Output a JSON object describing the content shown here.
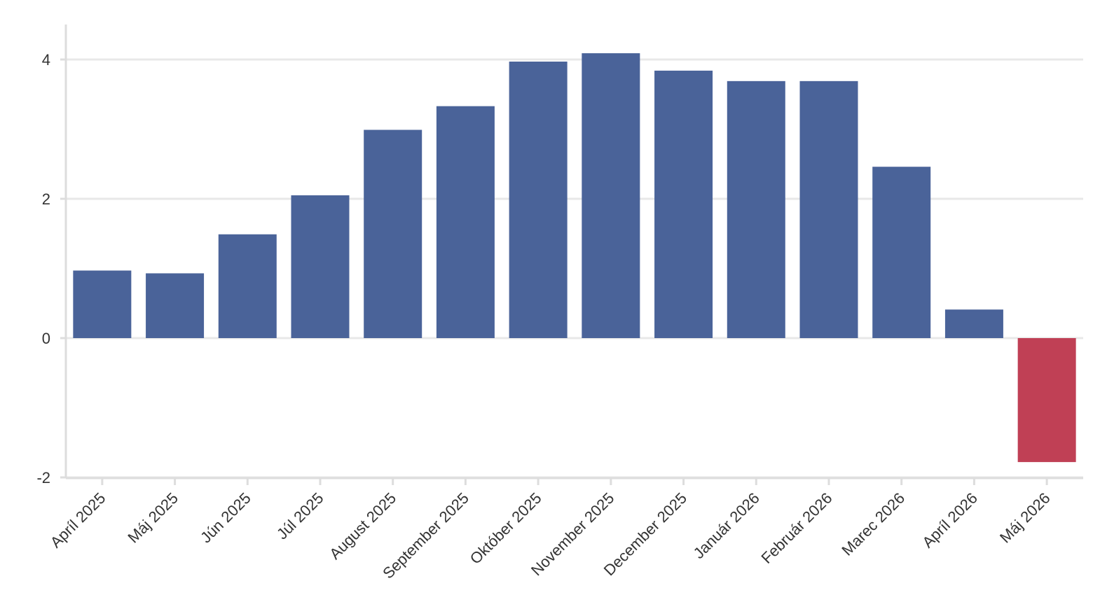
{
  "chart_data": {
    "type": "bar",
    "title": "",
    "xlabel": "",
    "ylabel": "",
    "categories": [
      "Apríl 2025",
      "Máj 2025",
      "Jún 2025",
      "Júl 2025",
      "August 2025",
      "September 2025",
      "Október 2025",
      "November 2025",
      "December 2025",
      "Január 2026",
      "Február 2026",
      "Marec 2026",
      "Apríl 2026",
      "Máj 2026"
    ],
    "values": [
      0.97,
      0.93,
      1.49,
      2.05,
      2.99,
      3.33,
      3.97,
      4.09,
      3.84,
      3.69,
      3.69,
      2.46,
      0.41,
      -1.78
    ],
    "ylim": [
      -2,
      4.5
    ],
    "yticks": [
      -2,
      0,
      2,
      4
    ],
    "ytick_labels": [
      "-2",
      "0",
      "2",
      "4"
    ],
    "grid": true,
    "colors": {
      "positive": "#4a6399",
      "negative": "#c04055",
      "grid": "#e8e8e8",
      "axis": "#dddddd"
    }
  }
}
